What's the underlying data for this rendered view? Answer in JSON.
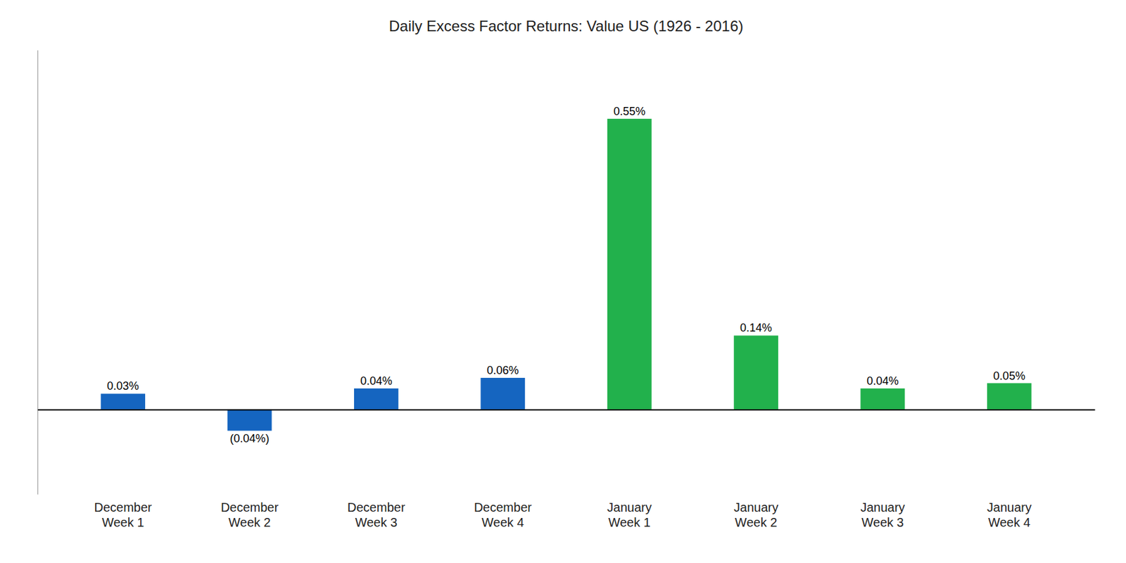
{
  "chart_data": {
    "type": "bar",
    "title": "Daily Excess Factor Returns: Value US (1926 - 2016)",
    "categories": [
      "December\nWeek 1",
      "December\nWeek 2",
      "December\nWeek 3",
      "December\nWeek 4",
      "January\nWeek 1",
      "January\nWeek 2",
      "January\nWeek 3",
      "January\nWeek 4"
    ],
    "values": [
      0.03,
      -0.04,
      0.04,
      0.06,
      0.55,
      0.14,
      0.04,
      0.05
    ],
    "value_labels": [
      "0.03%",
      "(0.04%)",
      "0.04%",
      "0.06%",
      "0.55%",
      "0.14%",
      "0.04%",
      "0.05%"
    ],
    "colors": [
      "#1565C0",
      "#1565C0",
      "#1565C0",
      "#1565C0",
      "#22B14C",
      "#22B14C",
      "#22B14C",
      "#22B14C"
    ],
    "ylim": [
      -0.16,
      0.68
    ],
    "grid": false,
    "data_labels": true,
    "tick_labels": "x"
  }
}
